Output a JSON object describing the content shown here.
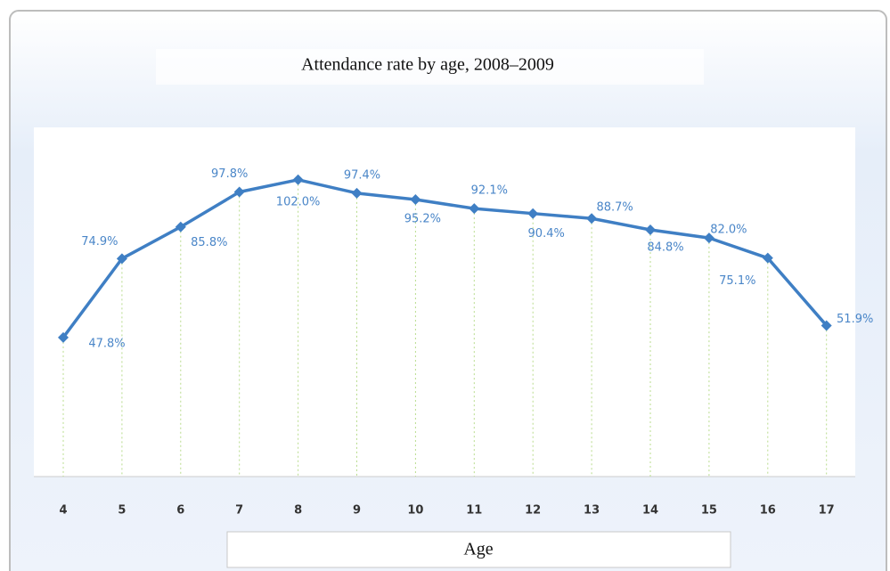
{
  "chart_data": {
    "type": "line",
    "title": "Attendance rate by age, 2008–2009",
    "x_label": "Age",
    "categories": [
      "4",
      "5",
      "6",
      "7",
      "8",
      "9",
      "10",
      "11",
      "12",
      "13",
      "14",
      "15",
      "16",
      "17"
    ],
    "series": [
      {
        "name": "Attendance rate",
        "color": "#3f7fc4",
        "values": [
          47.8,
          74.9,
          85.8,
          97.8,
          102.0,
          97.4,
          95.2,
          92.1,
          90.4,
          88.7,
          84.8,
          82.0,
          75.1,
          51.9
        ],
        "value_labels": [
          "47.8%",
          "74.9%",
          "85.8%",
          "97.8%",
          "102.0%",
          "97.4%",
          "95.2%",
          "92.1%",
          "90.4%",
          "88.7%",
          "84.8%",
          "82.0%",
          "75.1%",
          "51.9%"
        ]
      }
    ],
    "ylim": [
      0,
      120
    ]
  }
}
